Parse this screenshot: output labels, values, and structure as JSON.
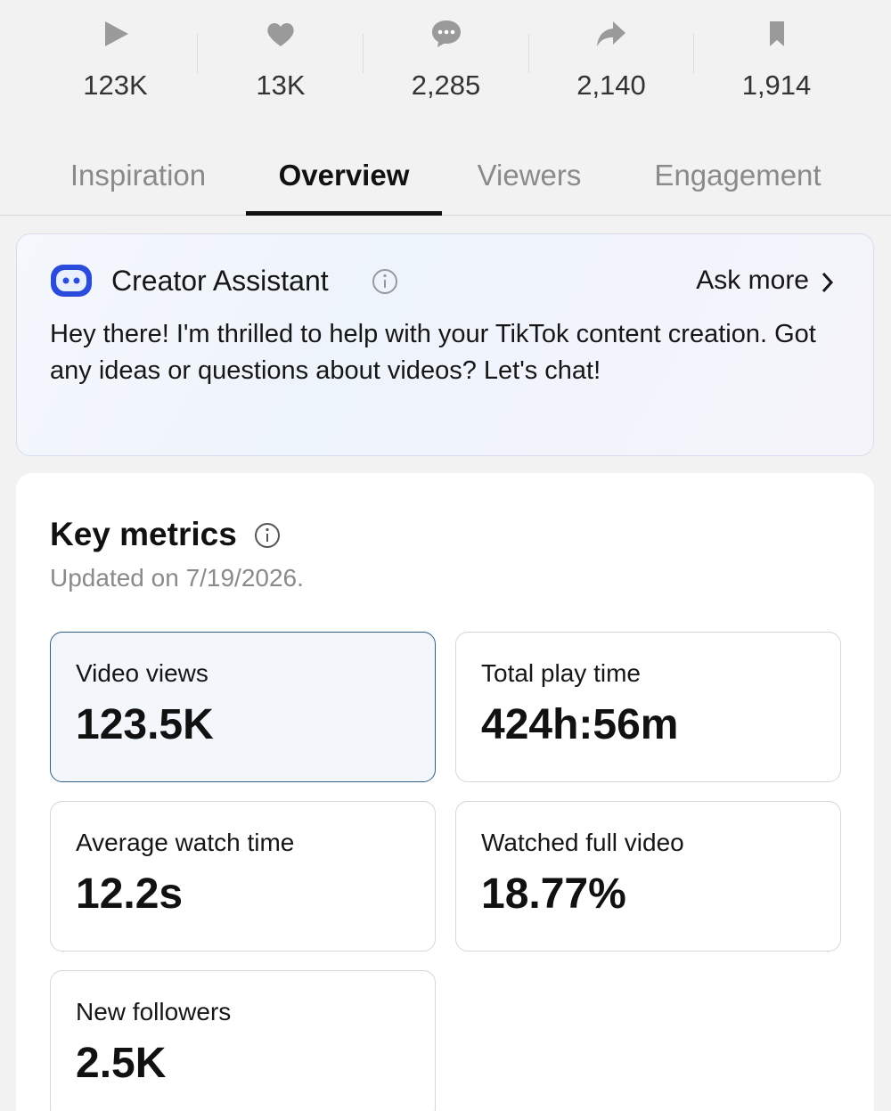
{
  "stats": [
    "123K",
    "13K",
    "2,285",
    "2,140",
    "1,914"
  ],
  "tabs": [
    "Inspiration",
    "Overview",
    "Viewers",
    "Engagement"
  ],
  "assistant": {
    "title": "Creator Assistant",
    "action": "Ask more",
    "message": "Hey there! I'm thrilled to help with your TikTok content creation. Got any ideas or questions about videos? Let's chat!"
  },
  "key_metrics": {
    "title": "Key metrics",
    "updated": "Updated on 7/19/2026.",
    "metrics": [
      {
        "label": "Video views",
        "value": "123.5K"
      },
      {
        "label": "Total play time",
        "value": "424h:56m"
      },
      {
        "label": "Average watch time",
        "value": "12.2s"
      },
      {
        "label": "Watched full video",
        "value": "18.77%"
      },
      {
        "label": "New followers",
        "value": "2.5K"
      }
    ]
  }
}
